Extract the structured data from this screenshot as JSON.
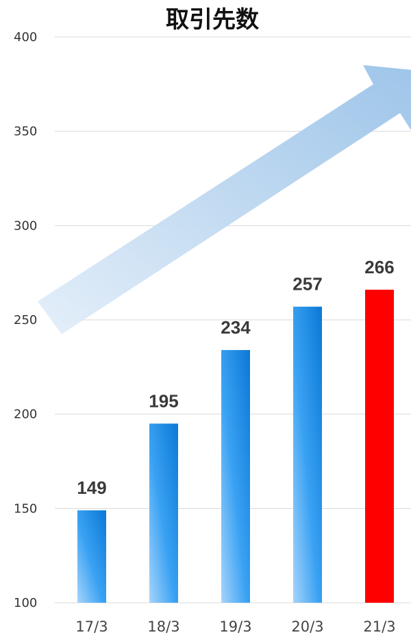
{
  "chart_data": {
    "type": "bar",
    "title": "取引先数",
    "categories": [
      "17/3",
      "18/3",
      "19/3",
      "20/3",
      "21/3"
    ],
    "values": [
      149,
      195,
      234,
      257,
      266
    ],
    "value_labels": [
      "149",
      "195",
      "234",
      "257",
      "266"
    ],
    "yticks": [
      "100",
      "150",
      "200",
      "250",
      "300",
      "350",
      "400"
    ],
    "ylim": [
      100,
      400
    ],
    "grid": true,
    "highlight_index": 4,
    "colors": {
      "bar": "#1e90e8",
      "bar_light": "#a6d4fb",
      "highlight": "#ff0000",
      "arrow": "#a9cbea"
    }
  }
}
